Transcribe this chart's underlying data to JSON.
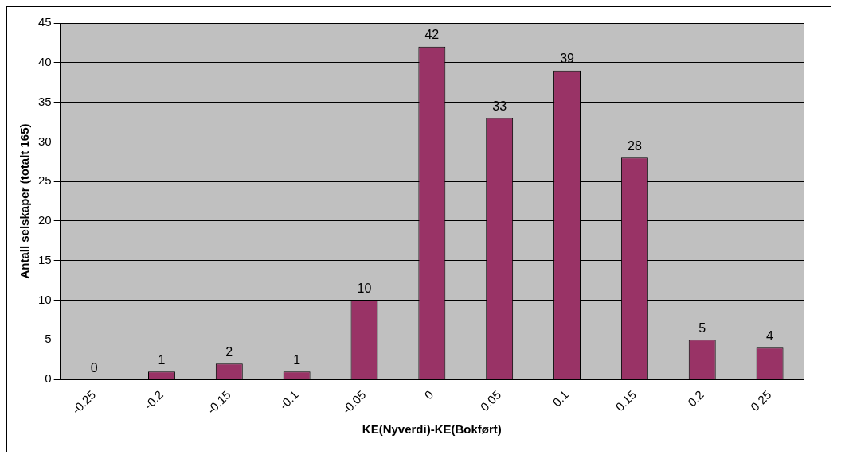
{
  "chart_data": {
    "type": "bar",
    "xlabel": "KE(Nyverdi)-KE(Bokført)",
    "ylabel": "Antall selskaper (totalt 165)",
    "categories": [
      "-0.25",
      "-0.2",
      "-0.15",
      "-0.1",
      "-0.05",
      "0",
      "0.05",
      "0.1",
      "0.15",
      "0.2",
      "0.25"
    ],
    "values": [
      0,
      1,
      2,
      1,
      10,
      42,
      33,
      39,
      28,
      5,
      4
    ],
    "color": "#993366",
    "ylim": [
      0,
      45
    ],
    "yticks": [
      0,
      5,
      10,
      15,
      20,
      25,
      30,
      35,
      40,
      45
    ],
    "grid": "y",
    "data_labels": true,
    "legend": false
  }
}
